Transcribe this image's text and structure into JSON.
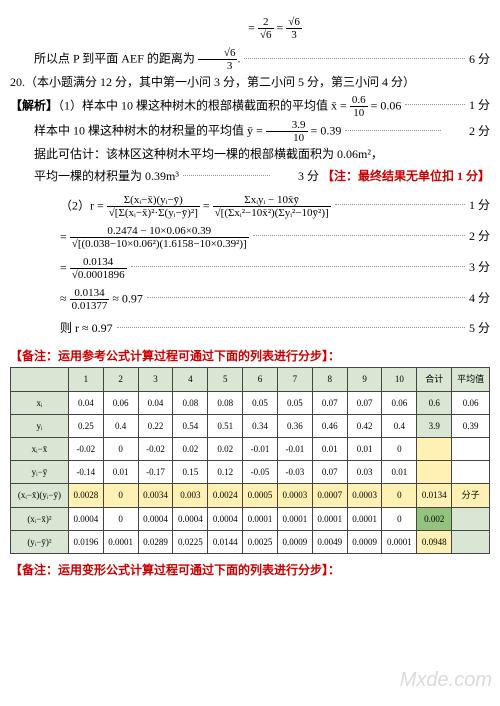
{
  "eq1": {
    "l": "= ",
    "a": "2",
    "b": "√6",
    "c": "√6",
    "d": "3"
  },
  "l1": {
    "pre": "所以点 P 到平面 AEF 的距离为",
    "num": "√6",
    "den": "3",
    "pts": "6 分"
  },
  "l2": {
    "txt": "20.（本小题满分 12 分，其中第一小问 3 分，第二小问 5 分，第三小问 4 分）"
  },
  "l3": {
    "lbl": "【解析】",
    "t1": "（1）样本中 10 棵这种树木的根部横截面积的平均值",
    "xn": "0.6",
    "xd": "10",
    "eq": "= 0.06",
    "pts": "1 分"
  },
  "l4": {
    "t1": "样本中 10 棵这种树木的材积量的平均值",
    "yn": "3.9",
    "yd": "10",
    "eq": "= 0.39",
    "pts": "2 分"
  },
  "l5": {
    "t1": "据此可估计：该林区这种树木平均一棵的根部横截面积为 0.06m²，"
  },
  "l6": {
    "t1": "平均一棵的材积量为 0.39m³",
    "pts": "3 分",
    "note": "【注：最终结果无单位扣 1 分】"
  },
  "l7": {
    "lbl": "（2）r =",
    "n1": "Σ(xᵢ−x̄)(yᵢ−ȳ)",
    "d1": "√[Σ(xᵢ−x̄)²·Σ(yᵢ−ȳ)²]",
    "n2": "Σxᵢyᵢ − 10x̄ȳ",
    "d2": "√[(Σxᵢ²−10x̄²)(Σyᵢ²−10ȳ²)]",
    "pts": "1 分"
  },
  "l8": {
    "n": "0.2474 − 10×0.06×0.39",
    "d": "√[(0.038−10×0.06²)(1.6158−10×0.39²)]",
    "pts": "2 分"
  },
  "l9": {
    "n": "0.0134",
    "d": "√0.0001896",
    "pts": "3 分"
  },
  "l10": {
    "n": "0.0134",
    "d": "0.01377",
    "eq": "≈ 0.97",
    "pts": "4 分"
  },
  "l11": {
    "t": "则 r ≈ 0.97",
    "pts": "5 分"
  },
  "note1": "【备注：运用参考公式计算过程可通过下面的列表进行分步】：",
  "tbl": {
    "h": [
      "",
      "1",
      "2",
      "3",
      "4",
      "5",
      "6",
      "7",
      "8",
      "9",
      "10",
      "合计",
      "平均值"
    ],
    "r": [
      [
        "xᵢ",
        "0.04",
        "0.06",
        "0.04",
        "0.08",
        "0.08",
        "0.05",
        "0.05",
        "0.07",
        "0.07",
        "0.06",
        "0.6",
        "0.06"
      ],
      [
        "yᵢ",
        "0.25",
        "0.4",
        "0.22",
        "0.54",
        "0.51",
        "0.34",
        "0.36",
        "0.46",
        "0.42",
        "0.4",
        "3.9",
        "0.39"
      ],
      [
        "xᵢ−x̄",
        "-0.02",
        "0",
        "-0.02",
        "0.02",
        "0.02",
        "-0.01",
        "-0.01",
        "0.01",
        "0.01",
        "0",
        "",
        " "
      ],
      [
        "yᵢ−ȳ",
        "-0.14",
        "0.01",
        "-0.17",
        "0.15",
        "0.12",
        "-0.05",
        "-0.03",
        "0.07",
        "0.03",
        "0.01",
        "",
        " "
      ],
      [
        "(xᵢ−x̄)(yᵢ−ȳ)",
        "0.0028",
        "0",
        "0.0034",
        "0.003",
        "0.0024",
        "0.0005",
        "0.0003",
        "0.0007",
        "0.0003",
        "0",
        "0.0134",
        "分子"
      ],
      [
        "(xᵢ−x̄)²",
        "0.0004",
        "0",
        "0.0004",
        "0.0004",
        "0.0004",
        "0.0001",
        "0.0001",
        "0.0001",
        "0.0001",
        "0",
        "0.002",
        ""
      ],
      [
        "(yᵢ−ȳ)²",
        "0.0196",
        "0.0001",
        "0.0289",
        "0.0225",
        "0.0144",
        "0.0025",
        "0.0009",
        "0.0049",
        "0.0009",
        "0.0001",
        "0.0948",
        ""
      ]
    ],
    "r5_bg": "#fff0b3"
  },
  "note2": "【备注：运用变形公式计算过程可通过下面的列表进行分步】："
}
